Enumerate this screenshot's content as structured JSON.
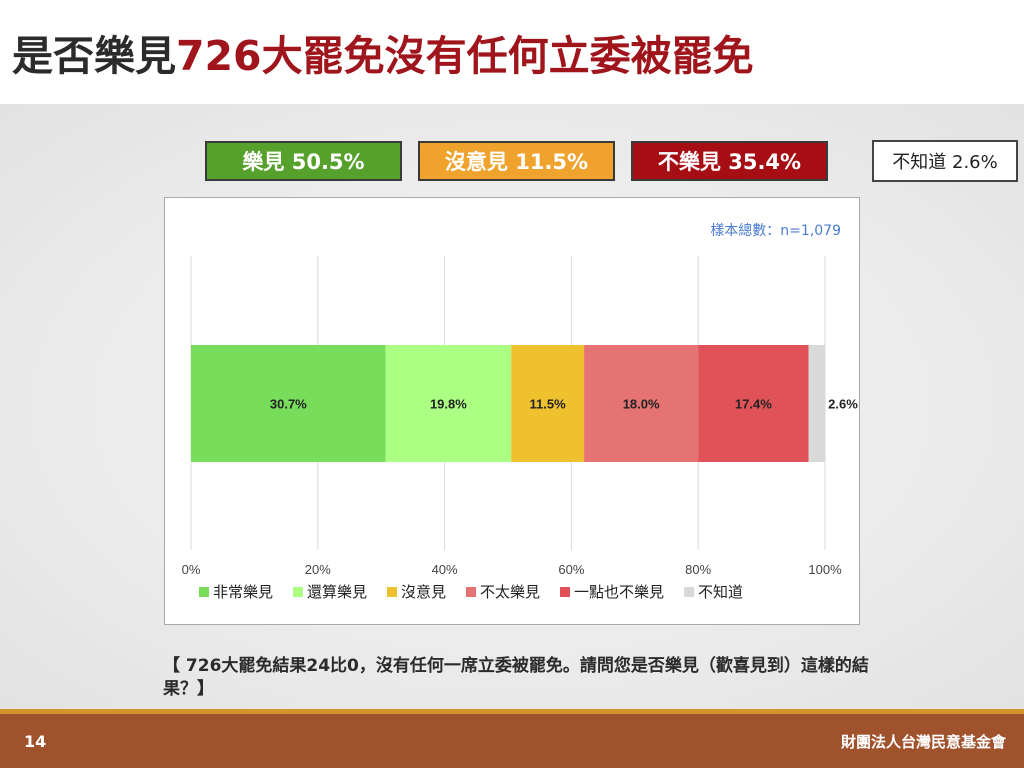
{
  "title": {
    "part1": "是否樂見",
    "part2": "726大罷免沒有任何立委被罷免"
  },
  "summary": {
    "like": "樂見 50.5%",
    "neutral": "沒意見 11.5%",
    "dislike": "不樂見 35.4%",
    "unknown": "不知道 2.6%"
  },
  "chart_data": {
    "type": "bar",
    "orientation": "horizontal-stacked-100",
    "sample_label": "樣本總數：n=1,079",
    "series": [
      {
        "name": "非常樂見",
        "value": 30.7,
        "label": "30.7%",
        "color": "#78dd5a"
      },
      {
        "name": "還算樂見",
        "value": 19.8,
        "label": "19.8%",
        "color": "#abff82"
      },
      {
        "name": "沒意見",
        "value": 11.5,
        "label": "11.5%",
        "color": "#f0c12e"
      },
      {
        "name": "不太樂見",
        "value": 18.0,
        "label": "18.0%",
        "color": "#e57373"
      },
      {
        "name": "一點也不樂見",
        "value": 17.4,
        "label": "17.4%",
        "color": "#e15258"
      },
      {
        "name": "不知道",
        "value": 2.6,
        "label": "2.6%",
        "color": "#d9d9d9"
      }
    ],
    "x_ticks": [
      "0%",
      "20%",
      "40%",
      "60%",
      "80%",
      "100%"
    ],
    "xlim": [
      0,
      100
    ],
    "grid": true,
    "legend_position": "bottom"
  },
  "question": "【 726大罷免結果24比0，沒有任何一席立委被罷免。請問您是否樂見（歡喜見到）這樣的結果？】",
  "footer": {
    "page": "14",
    "org": "財團法人台灣民意基金會"
  }
}
